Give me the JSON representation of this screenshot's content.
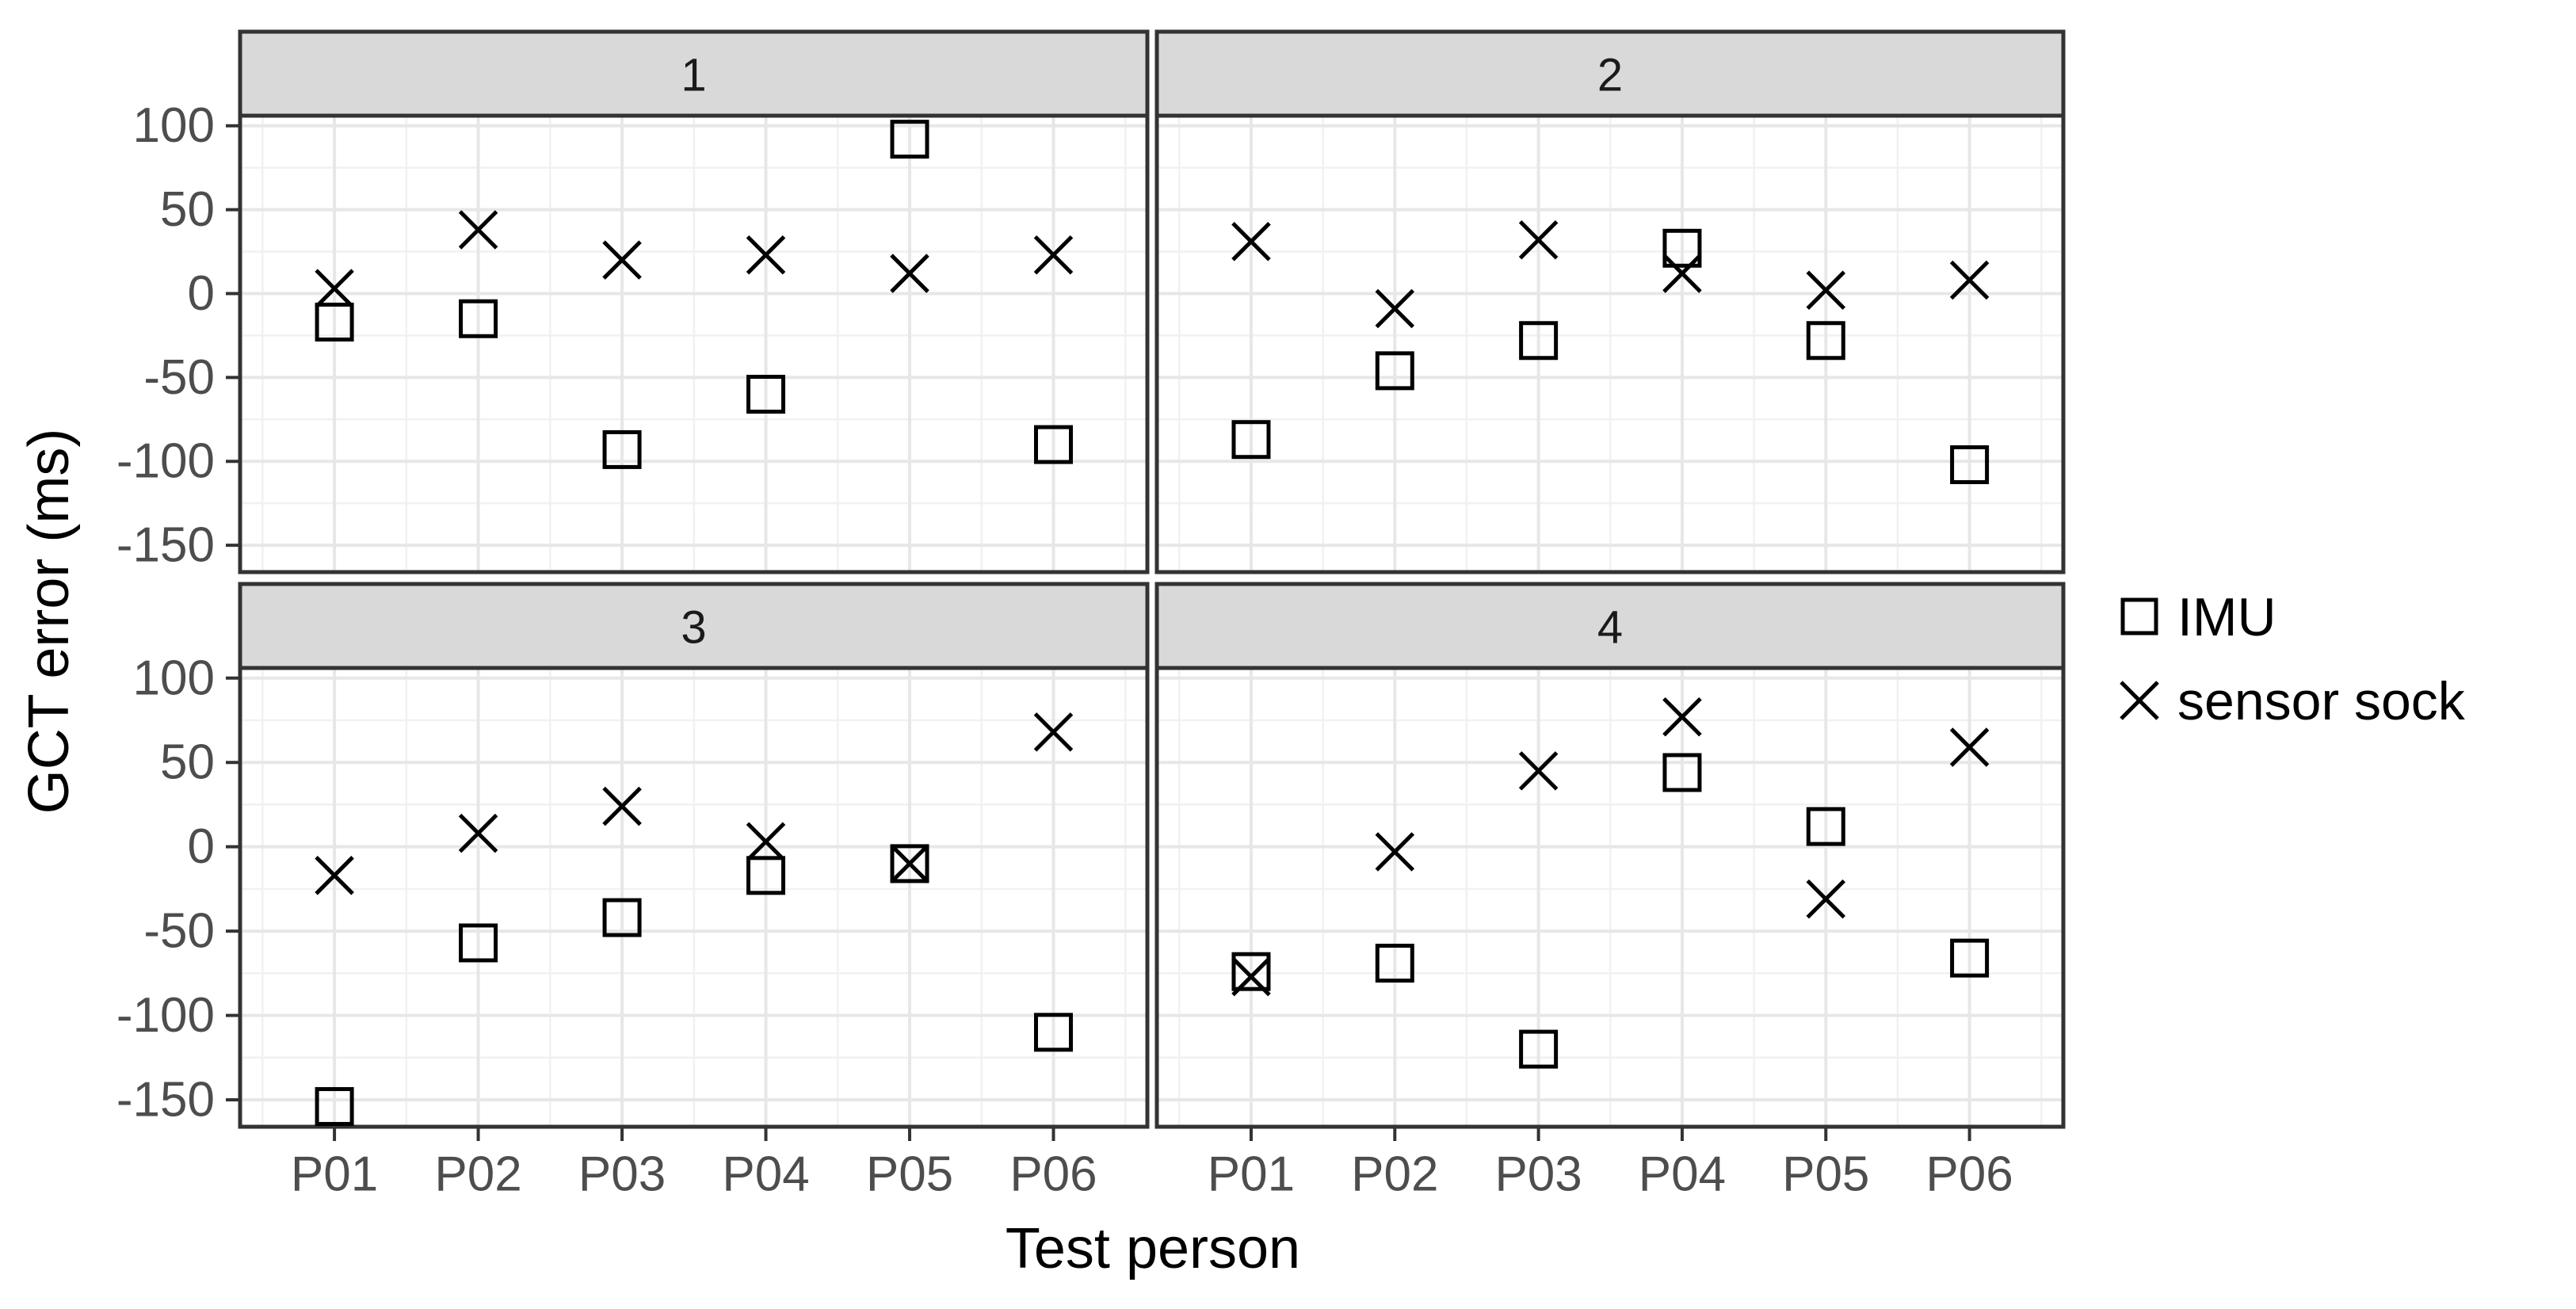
{
  "chart_data": {
    "type": "scatter",
    "title": "",
    "xlabel": "Test person",
    "ylabel": "GCT error (ms)",
    "categories": [
      "P01",
      "P02",
      "P03",
      "P04",
      "P05",
      "P06"
    ],
    "yticks": [
      100,
      50,
      0,
      -50,
      -100,
      -150
    ],
    "yticks_minor": [
      75,
      25,
      -25,
      -75,
      -125
    ],
    "ylim": [
      -166,
      106
    ],
    "grid": "on",
    "legend_position": "right",
    "facets": [
      {
        "label": "1",
        "series": [
          {
            "name": "IMU",
            "marker": "square",
            "values": [
              -17,
              -15,
              -93,
              -60,
              92,
              -90
            ]
          },
          {
            "name": "sensor sock",
            "marker": "x",
            "values": [
              3,
              38,
              20,
              23,
              12,
              23
            ]
          }
        ]
      },
      {
        "label": "2",
        "series": [
          {
            "name": "IMU",
            "marker": "square",
            "values": [
              -87,
              -46,
              -28,
              27,
              -28,
              -102
            ]
          },
          {
            "name": "sensor sock",
            "marker": "x",
            "values": [
              31,
              -9,
              32,
              12,
              2,
              8
            ]
          }
        ]
      },
      {
        "label": "3",
        "series": [
          {
            "name": "IMU",
            "marker": "square",
            "values": [
              -154,
              -57,
              -42,
              -17,
              -10,
              -110
            ]
          },
          {
            "name": "sensor sock",
            "marker": "x",
            "values": [
              -17,
              8,
              24,
              3,
              -10,
              68
            ]
          }
        ]
      },
      {
        "label": "4",
        "series": [
          {
            "name": "IMU",
            "marker": "square",
            "values": [
              -74,
              -69,
              -120,
              44,
              12,
              -66
            ]
          },
          {
            "name": "sensor sock",
            "marker": "x",
            "values": [
              -77,
              -3,
              45,
              77,
              -31,
              59
            ]
          }
        ]
      }
    ],
    "legend": [
      {
        "label": "IMU",
        "marker": "square"
      },
      {
        "label": "sensor sock",
        "marker": "x"
      }
    ],
    "colors": {
      "marker": "#000000",
      "strip_fill": "#d9d9d9",
      "strip_border": "#333333",
      "panel_border": "#333333",
      "panel_bg": "#ffffff",
      "grid_major": "#e7e7e7",
      "grid_minor": "#f1f1f1",
      "tick_mark": "#333333",
      "tick_label": "#4d4d4d",
      "axis_title": "#000000"
    }
  }
}
